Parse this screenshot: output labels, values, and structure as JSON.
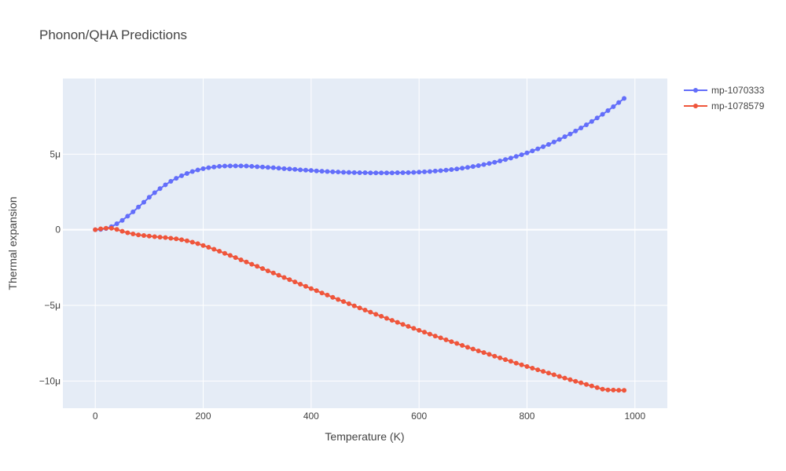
{
  "chart_data": {
    "type": "line",
    "title": "Phonon/QHA Predictions",
    "xlabel": "Temperature (K)",
    "ylabel": "Thermal expansion",
    "xlim": [
      -60,
      1060
    ],
    "ylim": [
      -1.18e-05,
      1e-05
    ],
    "x_ticks": [
      0,
      200,
      400,
      600,
      800,
      1000
    ],
    "x_tick_labels": [
      "0",
      "200",
      "400",
      "600",
      "800",
      "1000"
    ],
    "y_ticks": [
      -1e-05,
      -5e-06,
      0,
      5e-06
    ],
    "y_tick_labels": [
      "−10μ",
      "−5μ",
      "0",
      "5μ"
    ],
    "grid": true,
    "legend_position": "top-right",
    "plot_background": "#e5ecf6",
    "x_start": 0,
    "x_step": 10,
    "series": [
      {
        "name": "mp-1070333",
        "color": "#636efa",
        "values": [
          0,
          2e-08,
          8e-08,
          2e-07,
          4e-07,
          6.2e-07,
          9e-07,
          1.18e-06,
          1.5e-06,
          1.82e-06,
          2.15e-06,
          2.45e-06,
          2.72e-06,
          2.97e-06,
          3.2e-06,
          3.4e-06,
          3.57e-06,
          3.72e-06,
          3.85e-06,
          3.95e-06,
          4.04e-06,
          4.1e-06,
          4.15e-06,
          4.19e-06,
          4.21e-06,
          4.22e-06,
          4.22e-06,
          4.22e-06,
          4.21e-06,
          4.19e-06,
          4.17e-06,
          4.15e-06,
          4.12e-06,
          4.1e-06,
          4.07e-06,
          4.04e-06,
          4.02e-06,
          3.99e-06,
          3.96e-06,
          3.94e-06,
          3.92e-06,
          3.89e-06,
          3.87e-06,
          3.85e-06,
          3.83e-06,
          3.82e-06,
          3.8e-06,
          3.79e-06,
          3.78e-06,
          3.77e-06,
          3.77e-06,
          3.76e-06,
          3.76e-06,
          3.76e-06,
          3.76e-06,
          3.76e-06,
          3.77e-06,
          3.77e-06,
          3.78e-06,
          3.79e-06,
          3.81e-06,
          3.83e-06,
          3.85e-06,
          3.88e-06,
          3.91e-06,
          3.94e-06,
          3.98e-06,
          4.02e-06,
          4.07e-06,
          4.12e-06,
          4.18e-06,
          4.24e-06,
          4.31e-06,
          4.38e-06,
          4.46e-06,
          4.55e-06,
          4.64e-06,
          4.74e-06,
          4.85e-06,
          4.96e-06,
          5.08e-06,
          5.21e-06,
          5.35e-06,
          5.49e-06,
          5.64e-06,
          5.8e-06,
          5.97e-06,
          6.15e-06,
          6.33e-06,
          6.53e-06,
          6.73e-06,
          6.94e-06,
          7.16e-06,
          7.39e-06,
          7.63e-06,
          7.88e-06,
          8.14e-06,
          8.41e-06,
          8.68e-06
        ]
      },
      {
        "name": "mp-1078579",
        "color": "#ef553b",
        "values": [
          0,
          6e-08,
          1e-07,
          1e-07,
          2e-08,
          -1e-07,
          -2e-07,
          -2.8e-07,
          -3.4e-07,
          -3.8e-07,
          -4.2e-07,
          -4.6e-07,
          -4.9e-07,
          -5.2e-07,
          -5.6e-07,
          -6e-07,
          -6.6e-07,
          -7.3e-07,
          -8.2e-07,
          -9.2e-07,
          -1.04e-06,
          -1.16e-06,
          -1.29e-06,
          -1.42e-06,
          -1.56e-06,
          -1.7e-06,
          -1.84e-06,
          -1.99e-06,
          -2.13e-06,
          -2.28e-06,
          -2.42e-06,
          -2.57e-06,
          -2.72e-06,
          -2.86e-06,
          -3.01e-06,
          -3.16e-06,
          -3.3e-06,
          -3.45e-06,
          -3.6e-06,
          -3.74e-06,
          -3.89e-06,
          -4.03e-06,
          -4.18e-06,
          -4.32e-06,
          -4.47e-06,
          -4.61e-06,
          -4.75e-06,
          -4.89e-06,
          -5.03e-06,
          -5.17e-06,
          -5.31e-06,
          -5.45e-06,
          -5.59e-06,
          -5.72e-06,
          -5.86e-06,
          -5.99e-06,
          -6.12e-06,
          -6.26e-06,
          -6.39e-06,
          -6.52e-06,
          -6.65e-06,
          -6.77e-06,
          -6.9e-06,
          -7.03e-06,
          -7.15e-06,
          -7.28e-06,
          -7.4e-06,
          -7.52e-06,
          -7.65e-06,
          -7.77e-06,
          -7.89e-06,
          -8.01e-06,
          -8.12e-06,
          -8.24e-06,
          -8.36e-06,
          -8.47e-06,
          -8.59e-06,
          -8.7e-06,
          -8.82e-06,
          -8.93e-06,
          -9.04e-06,
          -9.15e-06,
          -9.26e-06,
          -9.37e-06,
          -9.48e-06,
          -9.59e-06,
          -9.7e-06,
          -9.81e-06,
          -9.91e-06,
          -1.002e-05,
          -1.012e-05,
          -1.023e-05,
          -1.033e-05,
          -1.044e-05,
          -1.054e-05,
          -1.059e-05,
          -1.06e-05,
          -1.061e-05,
          -1.062e-05
        ]
      }
    ]
  }
}
